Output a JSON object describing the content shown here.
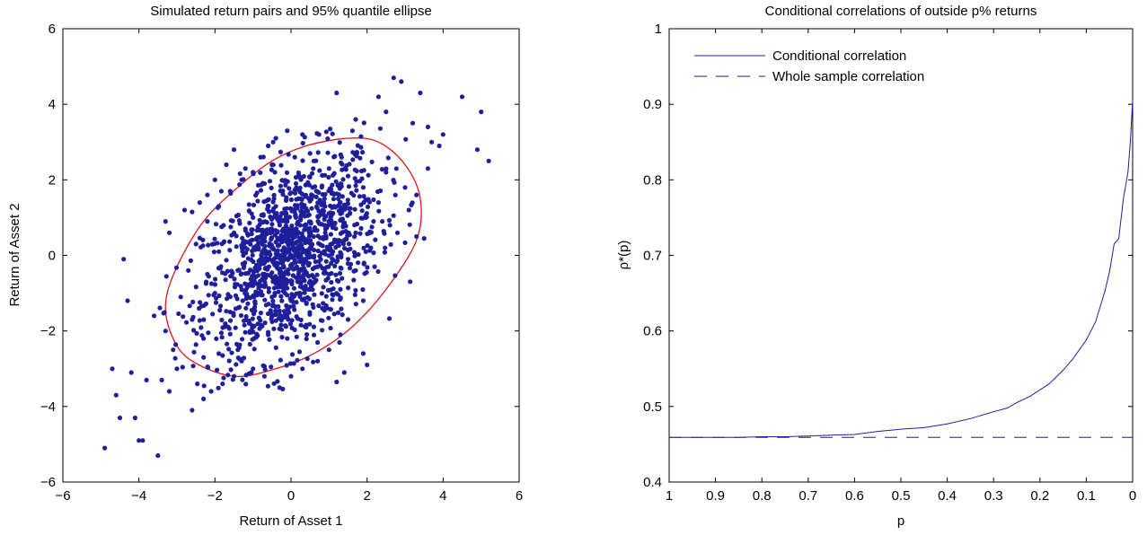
{
  "colors": {
    "points": "#1f1f9c",
    "ellipse": "#e0121b",
    "line": "#1f1f9c",
    "axes": "#000000",
    "background": "#ffffff"
  },
  "chart_data": [
    {
      "type": "scatter",
      "title": "Simulated return pairs and 95% quantile ellipse",
      "xlabel": "Return of Asset 1",
      "ylabel": "Return of Asset 2",
      "xlim": [
        -6,
        6
      ],
      "ylim": [
        -6,
        6
      ],
      "xticks": [
        -6,
        -4,
        -2,
        0,
        2,
        4,
        6
      ],
      "yticks": [
        -6,
        -4,
        -2,
        0,
        2,
        4,
        6
      ],
      "xtick_labels": [
        "−6",
        "−4",
        "−2",
        "0",
        "2",
        "4",
        "6"
      ],
      "ytick_labels": [
        "−6",
        "−4",
        "−2",
        "0",
        "2",
        "4",
        "6"
      ],
      "grid": false,
      "series": [
        {
          "kind": "scatter",
          "points": [
            [
              -4.9,
              -5.1
            ],
            [
              -3.5,
              -5.3
            ],
            [
              -4.0,
              -4.9
            ],
            [
              -3.9,
              -4.9
            ],
            [
              -4.5,
              -4.3
            ],
            [
              -4.1,
              -4.3
            ],
            [
              -4.6,
              -3.7
            ],
            [
              -4.7,
              -3.0
            ],
            [
              -4.2,
              -3.1
            ],
            [
              -3.8,
              -3.3
            ],
            [
              -3.4,
              -3.3
            ],
            [
              -3.2,
              -3.6
            ],
            [
              -3.0,
              -3.0
            ],
            [
              -2.6,
              -4.1
            ],
            [
              -2.3,
              -3.8
            ],
            [
              -2.1,
              -3.6
            ],
            [
              -1.8,
              -3.4
            ],
            [
              -1.5,
              -3.2
            ],
            [
              -4.4,
              -0.1
            ],
            [
              -4.3,
              -1.2
            ],
            [
              -3.6,
              -1.6
            ],
            [
              -3.3,
              -2.0
            ],
            [
              -3.1,
              -2.5
            ],
            [
              -3.2,
              0.6
            ],
            [
              -3.3,
              0.9
            ],
            [
              -2.8,
              1.2
            ],
            [
              -2.6,
              1.15
            ],
            [
              -2.4,
              1.4
            ],
            [
              -2.2,
              1.6
            ],
            [
              -2.0,
              2.0
            ],
            [
              -1.7,
              2.4
            ],
            [
              -1.5,
              2.8
            ],
            [
              -1.2,
              2.3
            ],
            [
              -0.8,
              2.6
            ],
            [
              -0.6,
              2.9
            ],
            [
              -0.4,
              3.1
            ],
            [
              -0.1,
              3.3
            ],
            [
              0.3,
              3.2
            ],
            [
              0.5,
              2.7
            ],
            [
              1.2,
              4.3
            ],
            [
              1.7,
              3.6
            ],
            [
              2.3,
              4.2
            ],
            [
              2.5,
              3.8
            ],
            [
              2.7,
              4.7
            ],
            [
              2.9,
              4.6
            ],
            [
              3.4,
              4.3
            ],
            [
              3.2,
              3.5
            ],
            [
              3.6,
              3.4
            ],
            [
              3.7,
              3.0
            ],
            [
              3.9,
              2.9
            ],
            [
              4.0,
              3.2
            ],
            [
              4.5,
              4.2
            ],
            [
              5.0,
              3.8
            ],
            [
              4.9,
              2.8
            ],
            [
              5.2,
              2.5
            ],
            [
              3.6,
              2.3
            ],
            [
              3.3,
              1.6
            ],
            [
              3.1,
              1.2
            ],
            [
              2.8,
              0.6
            ],
            [
              3.5,
              0.45
            ],
            [
              3.3,
              0.5
            ],
            [
              3.0,
              1.8
            ],
            [
              2.5,
              2.2
            ],
            [
              2.6,
              0.8
            ],
            [
              2.2,
              -0.3
            ],
            [
              1.9,
              -1.2
            ],
            [
              1.5,
              -1.7
            ],
            [
              1.3,
              -2.1
            ],
            [
              1.0,
              -2.5
            ],
            [
              0.7,
              -2.8
            ],
            [
              0.3,
              -3.0
            ],
            [
              0.0,
              -3.2
            ],
            [
              1.4,
              -3.1
            ],
            [
              1.2,
              -3.35
            ],
            [
              1.9,
              -2.6
            ],
            [
              2.0,
              -2.9
            ],
            [
              -0.3,
              -3.5
            ],
            [
              -0.7,
              -3.2
            ],
            [
              -1.0,
              -3.0
            ],
            [
              -1.3,
              -2.8
            ],
            [
              -1.9,
              -2.6
            ],
            [
              -2.3,
              -2.2
            ],
            [
              -2.6,
              -1.7
            ],
            [
              -2.9,
              -1.1
            ],
            [
              -2.7,
              -0.4
            ],
            [
              -2.5,
              0.3
            ],
            [
              -2.2,
              0.9
            ],
            [
              -1.9,
              1.3
            ],
            [
              -1.6,
              1.7
            ],
            [
              -1.3,
              2.0
            ],
            [
              -1.0,
              2.2
            ],
            [
              -0.5,
              2.4
            ],
            [
              0.1,
              2.6
            ],
            [
              0.6,
              2.5
            ],
            [
              1.0,
              2.3
            ],
            [
              1.5,
              2.1
            ],
            [
              1.9,
              1.8
            ],
            [
              2.3,
              1.4
            ],
            [
              2.4,
              0.9
            ],
            [
              2.1,
              0.2
            ],
            [
              1.7,
              -0.4
            ],
            [
              1.3,
              -0.9
            ],
            [
              0.9,
              -1.4
            ],
            [
              0.4,
              -1.9
            ],
            [
              -0.1,
              -2.2
            ],
            [
              -0.6,
              -2.1
            ],
            [
              -1.1,
              -1.8
            ],
            [
              -1.6,
              -1.5
            ],
            [
              -2.0,
              -1.0
            ],
            [
              -2.2,
              -0.5
            ],
            [
              -1.9,
              0.1
            ],
            [
              -1.5,
              0.6
            ],
            [
              -1.0,
              1.0
            ],
            [
              -0.4,
              1.3
            ],
            [
              0.2,
              1.5
            ],
            [
              0.8,
              1.4
            ],
            [
              1.3,
              1.1
            ],
            [
              1.7,
              0.6
            ],
            [
              1.5,
              -0.1
            ],
            [
              1.0,
              -0.5
            ],
            [
              0.5,
              -0.9
            ],
            [
              0.0,
              -1.2
            ],
            [
              -0.5,
              -1.1
            ],
            [
              -1.0,
              -0.8
            ],
            [
              -1.4,
              -0.4
            ],
            [
              -1.2,
              0.2
            ],
            [
              -0.8,
              0.5
            ],
            [
              -0.2,
              0.7
            ],
            [
              0.4,
              0.8
            ],
            [
              0.9,
              0.6
            ],
            [
              1.1,
              0.1
            ],
            [
              0.7,
              -0.3
            ],
            [
              0.2,
              -0.5
            ],
            [
              -0.3,
              -0.4
            ],
            [
              -0.7,
              -0.2
            ],
            [
              -0.5,
              0.2
            ],
            [
              0.0,
              0.3
            ],
            [
              0.5,
              0.2
            ],
            [
              0.3,
              -0.1
            ],
            [
              -0.1,
              -0.1
            ],
            [
              -0.2,
              0.1
            ],
            [
              0.1,
              0.0
            ]
          ]
        },
        {
          "kind": "ellipse",
          "label": "95% quantile ellipse",
          "center": [
            0.0,
            0.0
          ],
          "path_points": [
            [
              1.5,
              3.1
            ],
            [
              0.4,
              2.9
            ],
            [
              -0.5,
              2.5
            ],
            [
              -1.4,
              1.8
            ],
            [
              -2.3,
              0.9
            ],
            [
              -3.0,
              -0.3
            ],
            [
              -3.3,
              -1.3
            ],
            [
              -3.1,
              -2.2
            ],
            [
              -2.6,
              -2.8
            ],
            [
              -1.5,
              -3.2
            ],
            [
              -0.4,
              -3.0
            ],
            [
              0.6,
              -2.6
            ],
            [
              1.6,
              -1.9
            ],
            [
              2.5,
              -0.9
            ],
            [
              3.3,
              0.4
            ],
            [
              3.4,
              1.5
            ],
            [
              3.0,
              2.4
            ],
            [
              2.3,
              3.0
            ],
            [
              1.5,
              3.1
            ]
          ]
        }
      ]
    },
    {
      "type": "line",
      "title": "Conditional correlations of outside p% returns",
      "xlabel": "p",
      "ylabel": "ρ*(p)",
      "xlim": [
        1,
        0
      ],
      "ylim": [
        0.4,
        1.0
      ],
      "x_reversed": true,
      "xticks": [
        1,
        0.9,
        0.8,
        0.7,
        0.6,
        0.5,
        0.4,
        0.3,
        0.2,
        0.1,
        0
      ],
      "xtick_labels": [
        "1",
        "0.9",
        "0.8",
        "0.7",
        "0.6",
        "0.5",
        "0.4",
        "0.3",
        "0.2",
        "0.1",
        "0"
      ],
      "yticks": [
        0.4,
        0.5,
        0.6,
        0.7,
        0.8,
        0.9,
        1.0
      ],
      "ytick_labels": [
        "0.4",
        "0.5",
        "0.6",
        "0.7",
        "0.8",
        "0.9",
        "1"
      ],
      "grid": false,
      "legend_position": "top-left",
      "series": [
        {
          "name": "Conditional correlation",
          "style": "solid",
          "x": [
            1.0,
            0.95,
            0.9,
            0.85,
            0.8,
            0.75,
            0.7,
            0.65,
            0.6,
            0.55,
            0.5,
            0.45,
            0.4,
            0.35,
            0.3,
            0.27,
            0.25,
            0.22,
            0.2,
            0.18,
            0.15,
            0.13,
            0.1,
            0.08,
            0.06,
            0.05,
            0.04,
            0.03,
            0.02,
            0.01,
            0.005,
            0.0
          ],
          "y": [
            0.459,
            0.459,
            0.459,
            0.459,
            0.46,
            0.46,
            0.461,
            0.462,
            0.463,
            0.467,
            0.47,
            0.472,
            0.477,
            0.484,
            0.493,
            0.498,
            0.505,
            0.514,
            0.522,
            0.53,
            0.548,
            0.562,
            0.588,
            0.612,
            0.652,
            0.678,
            0.715,
            0.722,
            0.775,
            0.81,
            0.85,
            0.905
          ]
        },
        {
          "name": "Whole sample correlation",
          "style": "dashed",
          "x": [
            1.0,
            0.0
          ],
          "y": [
            0.459,
            0.459
          ]
        }
      ]
    }
  ]
}
